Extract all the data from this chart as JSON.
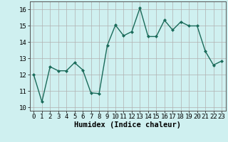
{
  "x": [
    0,
    1,
    2,
    3,
    4,
    5,
    6,
    7,
    8,
    9,
    10,
    11,
    12,
    13,
    14,
    15,
    16,
    17,
    18,
    19,
    20,
    21,
    22,
    23
  ],
  "y": [
    12.0,
    10.35,
    12.5,
    12.25,
    12.25,
    12.75,
    12.3,
    10.9,
    10.85,
    13.8,
    15.05,
    14.4,
    14.65,
    16.1,
    14.35,
    14.35,
    15.35,
    14.75,
    15.25,
    15.0,
    15.0,
    13.45,
    12.6,
    12.85
  ],
  "line_color": "#1a6b5a",
  "marker": "D",
  "marker_size": 2,
  "bg_color": "#cff0f0",
  "grid_color": "#b0b0b0",
  "xlabel": "Humidex (Indice chaleur)",
  "xlim": [
    -0.5,
    23.5
  ],
  "ylim": [
    9.8,
    16.5
  ],
  "yticks": [
    10,
    11,
    12,
    13,
    14,
    15,
    16
  ],
  "xticks": [
    0,
    1,
    2,
    3,
    4,
    5,
    6,
    7,
    8,
    9,
    10,
    11,
    12,
    13,
    14,
    15,
    16,
    17,
    18,
    19,
    20,
    21,
    22,
    23
  ],
  "xlabel_fontsize": 7.5,
  "tick_fontsize": 6.5,
  "line_width": 1.0
}
